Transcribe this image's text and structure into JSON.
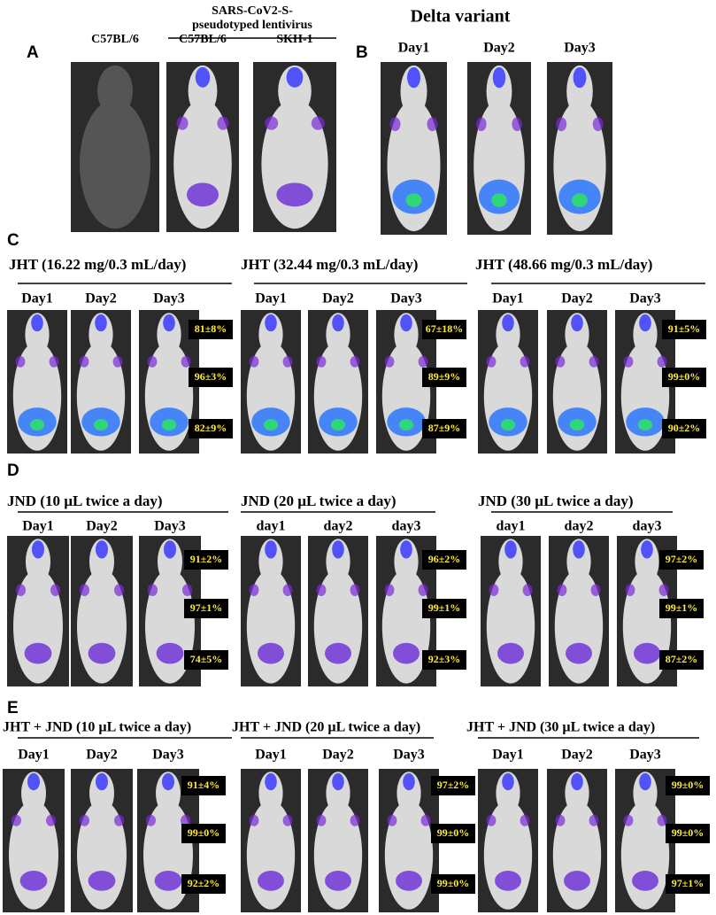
{
  "panel_a": {
    "letter": "A",
    "group_title": [
      "SARS-CoV2-S-",
      "pseudotyped lentivirus"
    ],
    "labels": [
      "C57BL/6",
      "C57BL/6",
      "SKH-1"
    ]
  },
  "panel_b": {
    "letter": "B",
    "title": "Delta variant",
    "days": [
      "Day1",
      "Day2",
      "Day3"
    ]
  },
  "panel_c": {
    "letter": "C",
    "groups": [
      {
        "title": "JHT (16.22 mg/0.3 mL/day)",
        "days": [
          "Day1",
          "Day2",
          "Day3"
        ],
        "percentages": [
          "81±8%",
          "96±3%",
          "82±9%"
        ]
      },
      {
        "title": "JHT (32.44 mg/0.3 mL/day)",
        "days": [
          "Day1",
          "Day2",
          "Day3"
        ],
        "percentages": [
          "67±18%",
          "89±9%",
          "87±9%"
        ]
      },
      {
        "title": "JHT (48.66 mg/0.3 mL/day)",
        "days": [
          "Day1",
          "Day2",
          "Day3"
        ],
        "percentages": [
          "91±5%",
          "99±0%",
          "90±2%"
        ]
      }
    ]
  },
  "panel_d": {
    "letter": "D",
    "groups": [
      {
        "title": "JND (10 µL twice a day)",
        "days": [
          "Day1",
          "Day2",
          "Day3"
        ],
        "percentages": [
          "91±2%",
          "97±1%",
          "74±5%"
        ]
      },
      {
        "title": "JND (20 µL twice a day)",
        "days": [
          "day1",
          "day2",
          "day3"
        ],
        "percentages": [
          "96±2%",
          "99±1%",
          "92±3%"
        ]
      },
      {
        "title": "JND (30 µL twice a day)",
        "days": [
          "day1",
          "day2",
          "day3"
        ],
        "percentages": [
          "97±2%",
          "99±1%",
          "87±2%"
        ]
      }
    ]
  },
  "panel_e": {
    "letter": "E",
    "groups": [
      {
        "title": "JHT + JND (10 µL twice a day)",
        "days": [
          "Day1",
          "Day2",
          "Day3"
        ],
        "percentages": [
          "91±4%",
          "99±0%",
          "92±2%"
        ]
      },
      {
        "title": "JHT + JND (20 µL twice a day)",
        "days": [
          "Day1",
          "Day2",
          "Day3"
        ],
        "percentages": [
          "97±2%",
          "99±0%",
          "99±0%"
        ]
      },
      {
        "title": "JHT + JND (30 µL twice a day)",
        "days": [
          "Day1",
          "Day2",
          "Day3"
        ],
        "percentages": [
          "99±0%",
          "99±0%",
          "97±1%"
        ]
      }
    ]
  }
}
